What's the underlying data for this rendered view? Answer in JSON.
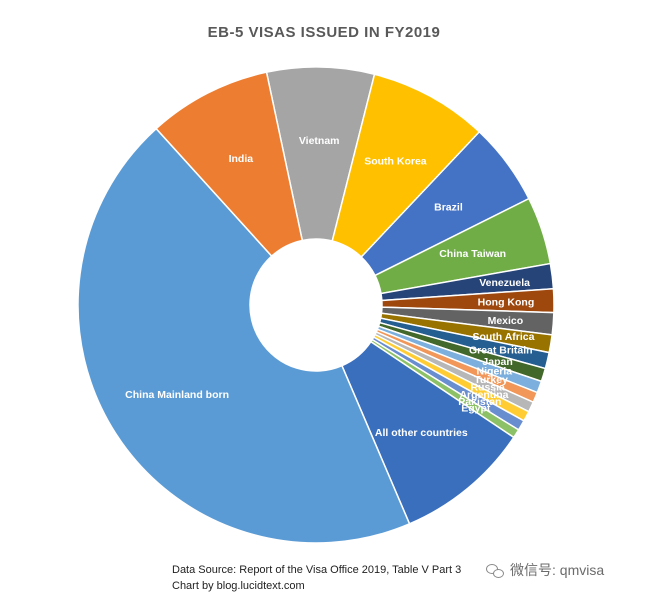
{
  "chart_data": {
    "type": "pie",
    "donut": true,
    "title": "EB-5 VISAS ISSUED IN FY2019",
    "slices": [
      {
        "label": "Vietnam",
        "value": 7.3,
        "color": "#a5a5a5"
      },
      {
        "label": "South Korea",
        "value": 8.1,
        "color": "#ffc000"
      },
      {
        "label": "Brazil",
        "value": 5.6,
        "color": "#4472c4"
      },
      {
        "label": "China Taiwan",
        "value": 4.6,
        "color": "#70ad47"
      },
      {
        "label": "Venezuela",
        "value": 1.7,
        "color": "#264478"
      },
      {
        "label": "Hong Kong",
        "value": 1.6,
        "color": "#9e480e"
      },
      {
        "label": "Mexico",
        "value": 1.5,
        "color": "#636363"
      },
      {
        "label": "South Africa",
        "value": 1.2,
        "color": "#997300"
      },
      {
        "label": "Great Britain",
        "value": 1.1,
        "color": "#255e91"
      },
      {
        "label": "Japan",
        "value": 0.9,
        "color": "#43682b"
      },
      {
        "label": "Nigeria",
        "value": 0.8,
        "color": "#7cafdd"
      },
      {
        "label": "Turkey",
        "value": 0.7,
        "color": "#f1975a"
      },
      {
        "label": "Russia",
        "value": 0.7,
        "color": "#b7b7b7"
      },
      {
        "label": "Argentina",
        "value": 0.7,
        "color": "#ffcd33"
      },
      {
        "label": "Pakistan",
        "value": 0.7,
        "color": "#698ed0"
      },
      {
        "label": "Egypt",
        "value": 0.6,
        "color": "#8cc168"
      },
      {
        "label": "All other countries",
        "value": 9.2,
        "color": "#3a6fbd"
      },
      {
        "label": "China Mainland born",
        "value": 44.8,
        "color": "#5b9bd5"
      },
      {
        "label": "India",
        "value": 8.4,
        "color": "#ed7d31"
      }
    ],
    "start_slice": "Vietnam",
    "legend": "none",
    "source_note": "Data Source: Report of the Visa Office 2019, Table V Part 3",
    "credit_note": "Chart by blog.lucidtext.com"
  },
  "watermark": {
    "icon": "wechat-icon",
    "text": "微信号: qmvisa"
  }
}
